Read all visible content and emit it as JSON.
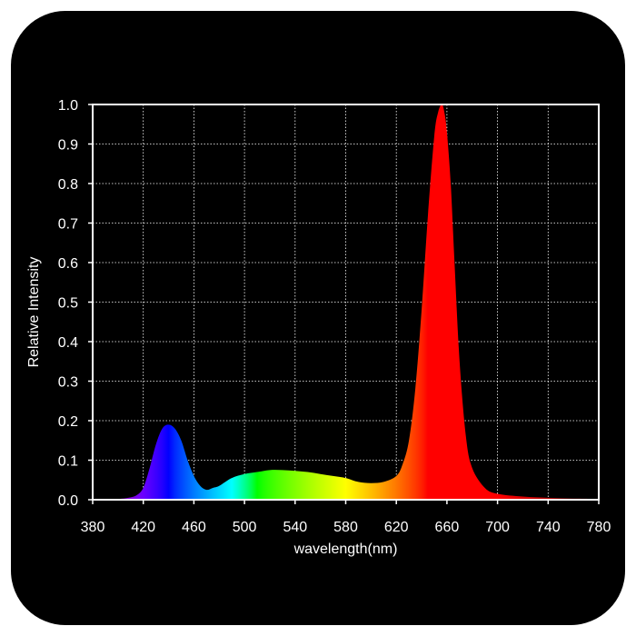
{
  "colors": {
    "frame": "#000000",
    "axis": "#ffffff",
    "grid": "#ffffff",
    "text": "#ffffff"
  },
  "chart_data": {
    "type": "area",
    "title": "",
    "xlabel": "wavelength(nm)",
    "ylabel": "Relative Intensity",
    "xlim": [
      380,
      780
    ],
    "ylim": [
      0,
      1.0
    ],
    "grid": true,
    "fill": "wavelength-colored spectrum",
    "x_ticks": [
      380,
      420,
      460,
      500,
      540,
      580,
      620,
      660,
      700,
      740,
      780
    ],
    "y_ticks": [
      "0.0",
      "0.1",
      "0.2",
      "0.3",
      "0.4",
      "0.5",
      "0.6",
      "0.7",
      "0.8",
      "0.9",
      "1.0"
    ],
    "series": [
      {
        "x": [
          380,
          400,
          410,
          415,
          420,
          425,
          430,
          435,
          440,
          445,
          450,
          455,
          460,
          465,
          470,
          475,
          480,
          490,
          500,
          510,
          520,
          530,
          540,
          550,
          560,
          570,
          580,
          590,
          600,
          610,
          620,
          625,
          630,
          635,
          640,
          645,
          650,
          653,
          656,
          658,
          660,
          663,
          666,
          670,
          675,
          680,
          690,
          700,
          720,
          740,
          760,
          780
        ],
        "y": [
          0.0,
          0.002,
          0.006,
          0.012,
          0.03,
          0.08,
          0.14,
          0.18,
          0.19,
          0.18,
          0.15,
          0.1,
          0.06,
          0.035,
          0.025,
          0.03,
          0.035,
          0.055,
          0.065,
          0.07,
          0.075,
          0.075,
          0.073,
          0.07,
          0.065,
          0.06,
          0.055,
          0.045,
          0.042,
          0.045,
          0.06,
          0.09,
          0.15,
          0.28,
          0.48,
          0.72,
          0.92,
          0.98,
          1.0,
          0.98,
          0.93,
          0.8,
          0.6,
          0.35,
          0.16,
          0.08,
          0.03,
          0.015,
          0.008,
          0.005,
          0.003,
          0.002
        ]
      }
    ]
  }
}
